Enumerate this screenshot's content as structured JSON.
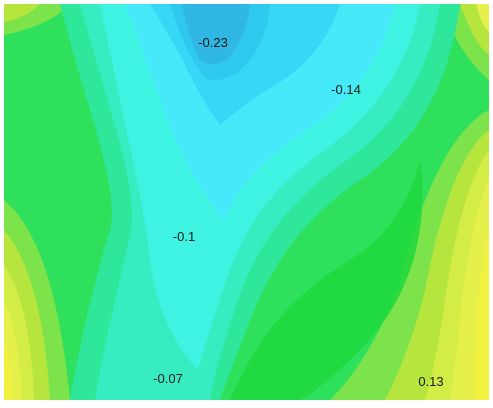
{
  "chart_data": {
    "type": "heatmap",
    "title": "",
    "xlabel": "",
    "ylabel": "",
    "colorscale": [
      "#31b7e4",
      "#2fc8ee",
      "#36d8f5",
      "#46e9f9",
      "#3ff3e2",
      "#36ecc0",
      "#2fe79a",
      "#2ee37a",
      "#2ee05c",
      "#1fd83c",
      "#7ce34a",
      "#b6e63e",
      "#d4ec46",
      "#e5f04a",
      "#f0f23f"
    ],
    "contour_labels": [
      {
        "text": "-0.23",
        "value": -0.23
      },
      {
        "text": "-0.14",
        "value": -0.14
      },
      {
        "text": "-0.1",
        "value": -0.1
      },
      {
        "text": "-0.07",
        "value": -0.07
      },
      {
        "text": "0.13",
        "value": 0.13
      }
    ]
  }
}
